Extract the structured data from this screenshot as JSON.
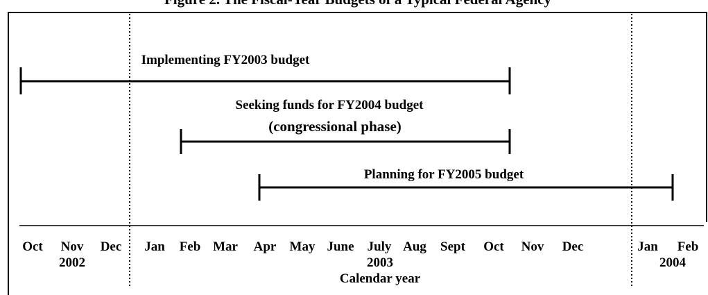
{
  "title": "Figure 2. The Fiscal-Year Budgets of a Typical Federal Agency",
  "bars": [
    {
      "label": [
        "Implementing FY2003 budget"
      ]
    },
    {
      "label": [
        "Seeking funds for FY2004 budget",
        "(congressional phase)"
      ]
    },
    {
      "label": [
        "Planning for FY2005 budget"
      ]
    }
  ],
  "months": [
    "Oct",
    "Nov",
    "Dec",
    "Jan",
    "Feb",
    "Mar",
    "Apr",
    "May",
    "June",
    "July",
    "Aug",
    "Sept",
    "Oct",
    "Nov",
    "Dec",
    "Jan",
    "Feb"
  ],
  "years": [
    "2002",
    "2003",
    "2004"
  ],
  "axis_label": "Calendar year"
}
